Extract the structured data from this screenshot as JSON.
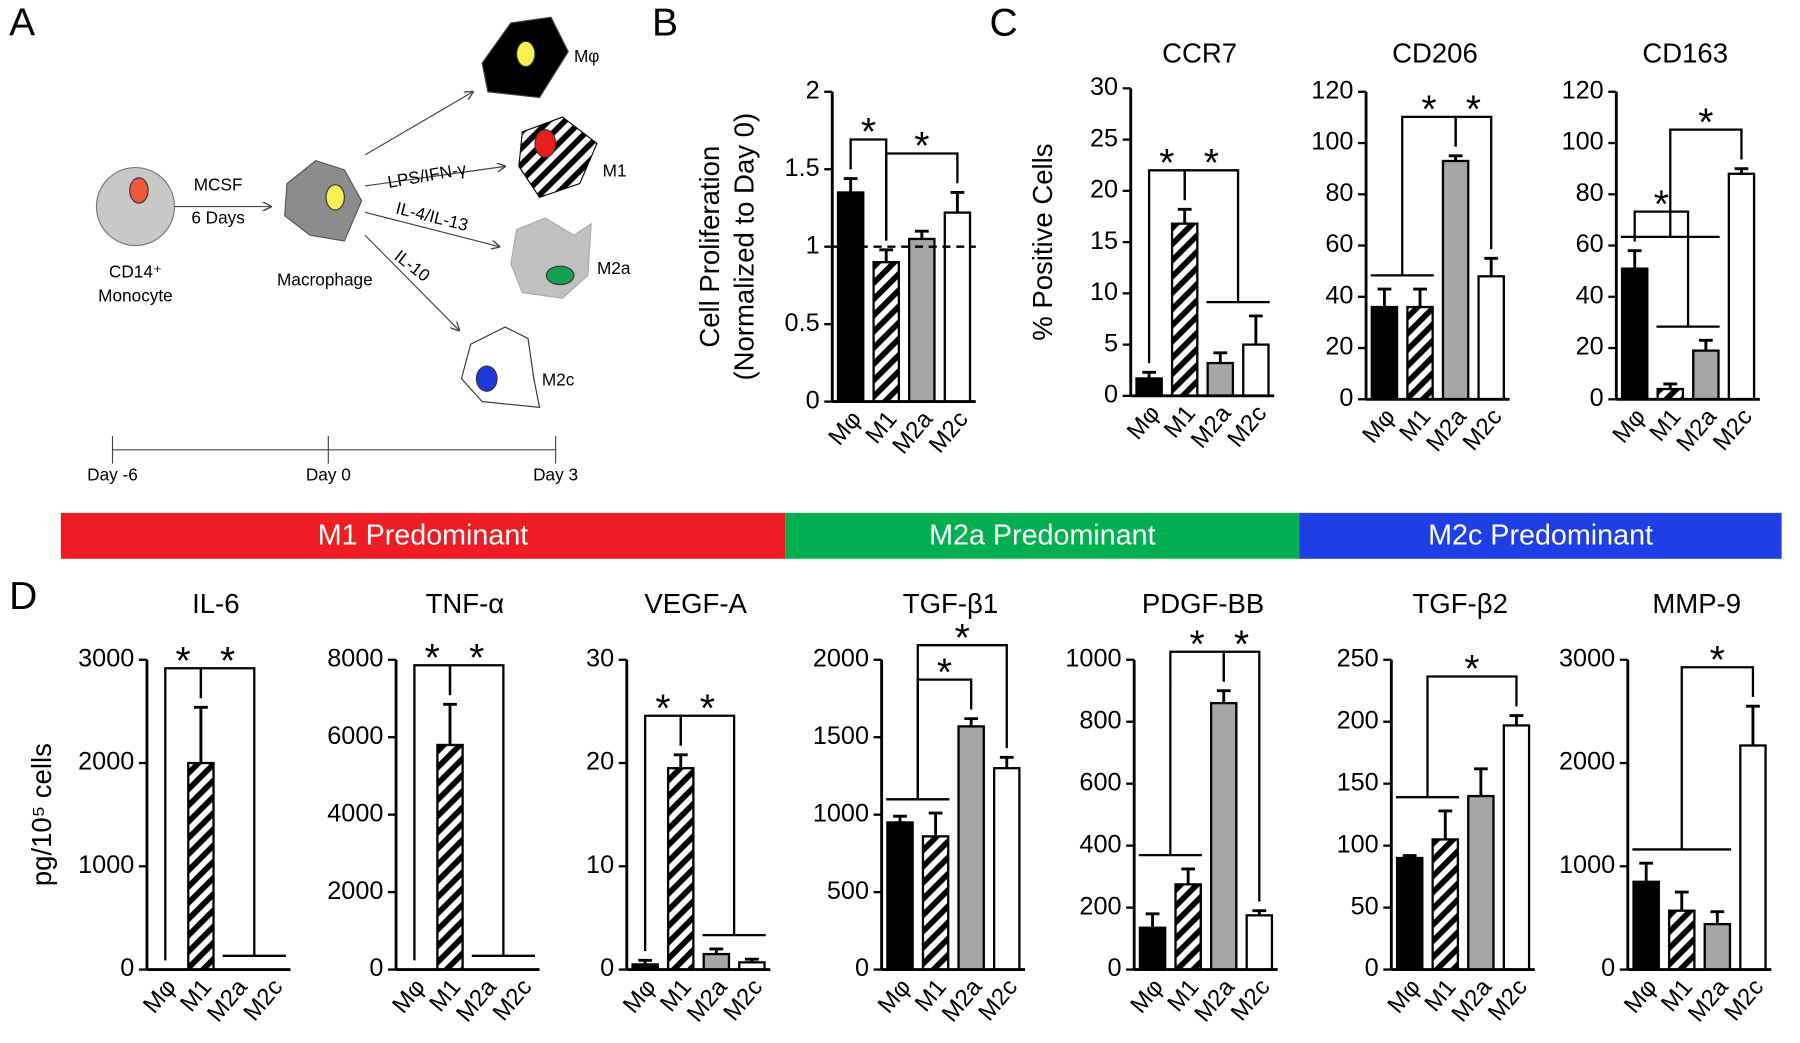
{
  "panel_labels": [
    "A",
    "B",
    "C",
    "D"
  ],
  "diagram": {
    "monocyte": [
      "CD14⁺",
      "Monocyte"
    ],
    "macrophage": "Macrophage",
    "mcsf": "MCSF",
    "days": "6 Days",
    "treatments": [
      "LPS/IFN-γ",
      "IL-4/IL-13",
      "IL-10"
    ],
    "cells": [
      "Mφ",
      "M1",
      "M2a",
      "M2c"
    ],
    "timeline": [
      "Day -6",
      "Day 0",
      "Day 3"
    ]
  },
  "banners": [
    {
      "text": "M1 Predominant",
      "color": "#ee1d23"
    },
    {
      "text": "M2a Predominant",
      "color": "#00b050"
    },
    {
      "text": "M2c Predominant",
      "color": "#1f3fe6"
    }
  ],
  "chart_data": [
    {
      "type": "bar",
      "y_label": [
        "Cell Proliferation",
        "(Normalized to Day 0)"
      ],
      "categories": [
        "Mφ",
        "M1",
        "M2a",
        "M2c"
      ],
      "values": [
        1.35,
        0.9,
        1.05,
        1.22
      ],
      "errors": [
        0.09,
        0.08,
        0.05,
        0.13
      ],
      "ylim": [
        0,
        2
      ],
      "yticks": [
        0,
        0.5,
        1,
        1.5,
        2
      ],
      "reference_line": 1,
      "colors": [
        "#000000",
        "#000000",
        "#a6a6a6",
        "#ffffff"
      ],
      "hatch": [
        false,
        true,
        false,
        false
      ],
      "annotations": [
        {
          "text": "*",
          "left": [
            0
          ],
          "right": [
            1
          ]
        },
        {
          "text": "*",
          "left": [
            1
          ],
          "right": [
            3
          ]
        }
      ]
    },
    {
      "type": "bar",
      "title": "CCR7",
      "y_label": [
        "% Positive Cells"
      ],
      "categories": [
        "Mφ",
        "M1",
        "M2a",
        "M2c"
      ],
      "values": [
        1.7,
        16.8,
        3.2,
        5
      ],
      "errors": [
        0.6,
        1.4,
        1,
        2.8
      ],
      "ylim": [
        0,
        30
      ],
      "yticks": [
        0,
        5,
        10,
        15,
        20,
        25,
        30
      ],
      "colors": [
        "#000000",
        "#000000",
        "#a6a6a6",
        "#ffffff"
      ],
      "hatch": [
        false,
        true,
        false,
        false
      ],
      "annotations": [
        {
          "text": "*",
          "left": [
            0
          ],
          "right": [
            1
          ]
        },
        {
          "text": "*",
          "left": [
            1
          ],
          "right": [
            2,
            3
          ]
        }
      ]
    },
    {
      "type": "bar",
      "title": "CD206",
      "categories": [
        "Mφ",
        "M1",
        "M2a",
        "M2c"
      ],
      "values": [
        36,
        36,
        93,
        48
      ],
      "errors": [
        7,
        7,
        2,
        7
      ],
      "ylim": [
        0,
        120
      ],
      "yticks": [
        0,
        20,
        40,
        60,
        80,
        100,
        120
      ],
      "colors": [
        "#000000",
        "#000000",
        "#a6a6a6",
        "#ffffff"
      ],
      "hatch": [
        false,
        true,
        false,
        false
      ],
      "annotations": [
        {
          "text": "*",
          "left": [
            0,
            1
          ],
          "right": [
            2
          ]
        },
        {
          "text": "*",
          "left": [
            2
          ],
          "right": [
            3
          ]
        }
      ]
    },
    {
      "type": "bar",
      "title": "CD163",
      "categories": [
        "Mφ",
        "M1",
        "M2a",
        "M2c"
      ],
      "values": [
        51,
        4,
        19,
        88
      ],
      "errors": [
        7,
        2,
        4,
        2
      ],
      "ylim": [
        0,
        120
      ],
      "yticks": [
        0,
        20,
        40,
        60,
        80,
        100,
        120
      ],
      "colors": [
        "#000000",
        "#000000",
        "#a6a6a6",
        "#ffffff"
      ],
      "hatch": [
        false,
        true,
        false,
        false
      ],
      "annotations": [
        {
          "text": "*",
          "left": [
            0
          ],
          "right": [
            1,
            2
          ]
        },
        {
          "text": "*",
          "left": [
            0,
            1,
            2
          ],
          "right": [
            3
          ]
        }
      ]
    },
    {
      "type": "bar",
      "title": "IL-6",
      "y_label": [
        "pg/10⁵ cells"
      ],
      "categories": [
        "Mφ",
        "M1",
        "M2a",
        "M2c"
      ],
      "values": [
        0,
        2000,
        0,
        0
      ],
      "errors": [
        0,
        540,
        0,
        0
      ],
      "ylim": [
        0,
        3000
      ],
      "yticks": [
        0,
        1000,
        2000,
        3000
      ],
      "colors": [
        "#000000",
        "#000000",
        "#a6a6a6",
        "#ffffff"
      ],
      "hatch": [
        false,
        true,
        false,
        false
      ],
      "annotations": [
        {
          "text": "*",
          "left": [
            0
          ],
          "right": [
            1
          ]
        },
        {
          "text": "*",
          "left": [
            1
          ],
          "right": [
            2,
            3
          ]
        }
      ]
    },
    {
      "type": "bar",
      "title": "TNF-α",
      "categories": [
        "Mφ",
        "M1",
        "M2a",
        "M2c"
      ],
      "values": [
        0,
        5800,
        0,
        0
      ],
      "errors": [
        0,
        1050,
        0,
        0
      ],
      "ylim": [
        0,
        8000
      ],
      "yticks": [
        0,
        2000,
        4000,
        6000,
        8000
      ],
      "colors": [
        "#000000",
        "#000000",
        "#a6a6a6",
        "#ffffff"
      ],
      "hatch": [
        false,
        true,
        false,
        false
      ],
      "annotations": [
        {
          "text": "*",
          "left": [
            0
          ],
          "right": [
            1
          ]
        },
        {
          "text": "*",
          "left": [
            1
          ],
          "right": [
            2,
            3
          ]
        }
      ]
    },
    {
      "type": "bar",
      "title": "VEGF-A",
      "categories": [
        "Mφ",
        "M1",
        "M2a",
        "M2c"
      ],
      "values": [
        0.5,
        19.5,
        1.5,
        0.7
      ],
      "errors": [
        0.4,
        1.3,
        0.5,
        0.3
      ],
      "ylim": [
        0,
        30
      ],
      "yticks": [
        0,
        10,
        20,
        30
      ],
      "colors": [
        "#000000",
        "#000000",
        "#a6a6a6",
        "#ffffff"
      ],
      "hatch": [
        false,
        true,
        false,
        false
      ],
      "annotations": [
        {
          "text": "*",
          "left": [
            0
          ],
          "right": [
            1
          ]
        },
        {
          "text": "*",
          "left": [
            1
          ],
          "right": [
            2,
            3
          ]
        }
      ]
    },
    {
      "type": "bar",
      "title": "TGF-β1",
      "categories": [
        "Mφ",
        "M1",
        "M2a",
        "M2c"
      ],
      "values": [
        950,
        860,
        1570,
        1300
      ],
      "errors": [
        40,
        150,
        50,
        70
      ],
      "ylim": [
        0,
        2000
      ],
      "yticks": [
        0,
        500,
        1000,
        1500,
        2000
      ],
      "colors": [
        "#000000",
        "#000000",
        "#a6a6a6",
        "#ffffff"
      ],
      "hatch": [
        false,
        true,
        false,
        false
      ],
      "annotations": [
        {
          "text": "*",
          "left": [
            0,
            1
          ],
          "right": [
            2
          ]
        },
        {
          "text": "*",
          "left": [
            0,
            1
          ],
          "right": [
            3
          ]
        }
      ]
    },
    {
      "type": "bar",
      "title": "PDGF-BB",
      "categories": [
        "Mφ",
        "M1",
        "M2a",
        "M2c"
      ],
      "values": [
        135,
        275,
        860,
        175
      ],
      "errors": [
        45,
        50,
        40,
        15
      ],
      "ylim": [
        0,
        1000
      ],
      "yticks": [
        0,
        200,
        400,
        600,
        800,
        1000
      ],
      "colors": [
        "#000000",
        "#000000",
        "#a6a6a6",
        "#ffffff"
      ],
      "hatch": [
        false,
        true,
        false,
        false
      ],
      "annotations": [
        {
          "text": "*",
          "left": [
            0,
            1
          ],
          "right": [
            2
          ]
        },
        {
          "text": "*",
          "left": [
            2
          ],
          "right": [
            3
          ]
        }
      ]
    },
    {
      "type": "bar",
      "title": "TGF-β2",
      "categories": [
        "Mφ",
        "M1",
        "M2a",
        "M2c"
      ],
      "values": [
        90,
        105,
        140,
        197
      ],
      "errors": [
        2,
        23,
        22,
        8
      ],
      "ylim": [
        0,
        250
      ],
      "yticks": [
        0,
        50,
        100,
        150,
        200,
        250
      ],
      "colors": [
        "#000000",
        "#000000",
        "#a6a6a6",
        "#ffffff"
      ],
      "hatch": [
        false,
        true,
        false,
        false
      ],
      "annotations": [
        {
          "text": "*",
          "left": [
            0,
            1
          ],
          "right": [
            3
          ]
        }
      ]
    },
    {
      "type": "bar",
      "title": "MMP-9",
      "categories": [
        "Mφ",
        "M1",
        "M2a",
        "M2c"
      ],
      "values": [
        850,
        570,
        440,
        2170
      ],
      "errors": [
        180,
        180,
        120,
        380
      ],
      "ylim": [
        0,
        3000
      ],
      "yticks": [
        0,
        1000,
        2000,
        3000
      ],
      "colors": [
        "#000000",
        "#000000",
        "#a6a6a6",
        "#ffffff"
      ],
      "hatch": [
        false,
        true,
        false,
        false
      ],
      "annotations": [
        {
          "text": "*",
          "left": [
            0,
            1,
            2
          ],
          "right": [
            3
          ]
        }
      ]
    }
  ]
}
